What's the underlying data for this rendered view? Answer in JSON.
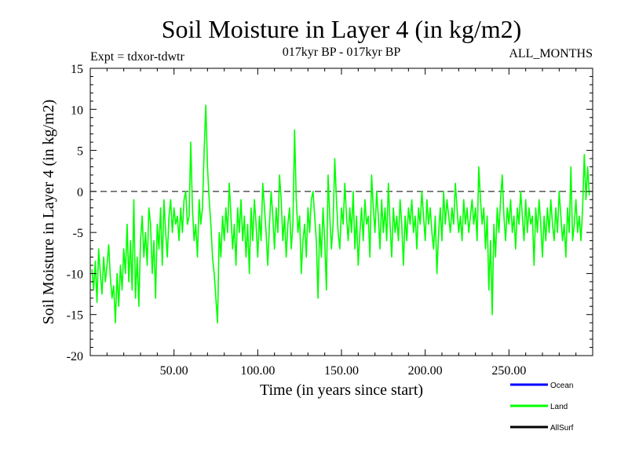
{
  "chart_data": {
    "type": "line",
    "title": "Soil Moisture in Layer 4 (in kg/m2)",
    "subtitle": "017kyr BP - 017kyr BP",
    "left_note": "Expt = tdxor-tdwtr",
    "right_note": "ALL_MONTHS",
    "xlabel": "Time (in years since start)",
    "ylabel": "Soil Moisture in Layer 4 (in kg/m2)",
    "xlim": [
      0,
      300
    ],
    "ylim": [
      -20,
      15
    ],
    "x_ticks": [
      50,
      100,
      150,
      200,
      250
    ],
    "x_tick_labels": [
      "50.00",
      "100.00",
      "150.00",
      "200.00",
      "250.00"
    ],
    "y_ticks": [
      15,
      10,
      5,
      0,
      -5,
      -10,
      -15,
      -20
    ],
    "y_tick_labels": [
      "15",
      "10",
      "5",
      "0",
      "-5",
      "-10",
      "-15",
      "-20"
    ],
    "reference_line": {
      "y": 0,
      "style": "dashed"
    },
    "legend": [
      {
        "name": "Ocean",
        "color": "#0000ff"
      },
      {
        "name": "Land",
        "color": "#00ff00"
      },
      {
        "name": "AllSurf",
        "color": "#000000"
      }
    ],
    "series": [
      {
        "name": "Land",
        "color": "#00ff00",
        "x_start": 1,
        "x_step": 1,
        "y": [
          -9.5,
          -12.0,
          -8.5,
          -13.5,
          -7.0,
          -10.0,
          -12.5,
          -8.0,
          -11.0,
          -9.0,
          -6.5,
          -10.5,
          -13.0,
          -11.5,
          -16.0,
          -10.0,
          -14.0,
          -9.0,
          -12.0,
          -7.0,
          -10.0,
          -4.0,
          -11.0,
          -6.0,
          -12.0,
          -1.0,
          -13.0,
          -8.0,
          -14.0,
          -6.0,
          -3.0,
          -8.0,
          -5.0,
          -9.0,
          -2.0,
          -4.0,
          -10.0,
          -6.0,
          -13.0,
          -4.0,
          -7.0,
          -2.0,
          -9.0,
          -1.0,
          -5.0,
          -8.0,
          -3.0,
          -1.0,
          -5.0,
          -2.0,
          -4.0,
          -3.0,
          -6.0,
          -2.0,
          -5.0,
          -1.0,
          0.0,
          -4.0,
          -3.0,
          6.0,
          -2.0,
          -6.0,
          -4.0,
          -8.0,
          -1.0,
          -4.0,
          -2.0,
          5.0,
          10.5,
          3.0,
          -1.0,
          -4.0,
          -8.0,
          -10.0,
          -13.0,
          -16.0,
          -5.0,
          -8.0,
          -3.0,
          -6.0,
          -2.0,
          -5.0,
          1.0,
          -3.0,
          -7.0,
          -4.0,
          -9.0,
          -2.0,
          -5.0,
          -1.0,
          -6.0,
          -3.0,
          -8.0,
          -4.0,
          -10.0,
          -2.0,
          -6.0,
          -1.0,
          -4.0,
          -8.0,
          -3.0,
          -6.0,
          1.0,
          -2.0,
          -5.0,
          -9.0,
          -4.0,
          0.0,
          -3.0,
          -7.0,
          -2.0,
          -5.0,
          2.0,
          -1.0,
          -6.0,
          -3.0,
          -8.0,
          -4.0,
          -2.0,
          -7.0,
          -4.0,
          7.5,
          -1.0,
          -5.0,
          -3.0,
          -10.0,
          -6.0,
          -4.0,
          -8.0,
          -2.0,
          -5.0,
          -1.0,
          0.0,
          -3.0,
          -6.0,
          -13.0,
          -4.0,
          -8.0,
          -2.0,
          -6.0,
          -12.0,
          2.0,
          -3.0,
          -7.0,
          -4.0,
          4.0,
          -1.0,
          -5.0,
          -7.0,
          -2.0,
          -4.0,
          1.0,
          -3.0,
          -6.0,
          -2.0,
          -5.0,
          0.0,
          -7.0,
          -3.0,
          -9.0,
          -5.0,
          -2.0,
          -6.0,
          -1.0,
          -4.0,
          -3.0,
          -8.0,
          2.0,
          -2.0,
          -5.0,
          0.0,
          -3.0,
          -7.0,
          -1.0,
          -5.0,
          -2.0,
          -6.0,
          1.0,
          -4.0,
          -8.0,
          -2.0,
          -5.0,
          -3.0,
          -6.0,
          -1.0,
          -4.0,
          -9.0,
          -3.0,
          -6.0,
          -2.0,
          -4.0,
          -1.0,
          -5.0,
          -3.0,
          -7.0,
          -2.0,
          -4.0,
          0.0,
          -3.0,
          -6.0,
          -1.0,
          -4.0,
          -2.0,
          -5.0,
          -7.0,
          -3.0,
          -10.0,
          -5.0,
          -2.0,
          -6.0,
          0.0,
          -4.0,
          -1.0,
          -3.0,
          -5.0,
          -2.0,
          -4.0,
          1.0,
          -2.0,
          -5.0,
          -3.0,
          -6.0,
          -1.0,
          -4.0,
          -2.0,
          -5.0,
          -3.0,
          -1.0,
          -4.0,
          -2.0,
          -6.0,
          3.0,
          -1.0,
          -4.0,
          -2.0,
          -7.0,
          -3.0,
          -12.0,
          -6.0,
          -15.0,
          -4.0,
          -8.0,
          -2.0,
          -5.0,
          -1.0,
          2.0,
          -3.0,
          -6.0,
          -2.0,
          -4.0,
          -1.0,
          -5.0,
          -3.0,
          -7.0,
          -2.0,
          -4.0,
          0.0,
          -3.0,
          -6.0,
          -1.0,
          -5.0,
          -2.0,
          -4.0,
          -3.0,
          -9.0,
          -2.0,
          -5.0,
          -1.0,
          -4.0,
          -8.0,
          -3.0,
          -6.0,
          -2.0,
          -5.0,
          -1.0,
          -4.0,
          -6.0,
          -2.0,
          -5.0,
          0.0,
          -3.0,
          -6.0,
          -4.0,
          -8.0,
          -2.0,
          -5.0,
          3.0,
          -6.0,
          -4.0,
          -1.0,
          -5.0,
          -3.0,
          -6.0,
          -2.0,
          4.5,
          -1.0,
          3.0,
          -0.5
        ]
      }
    ]
  }
}
